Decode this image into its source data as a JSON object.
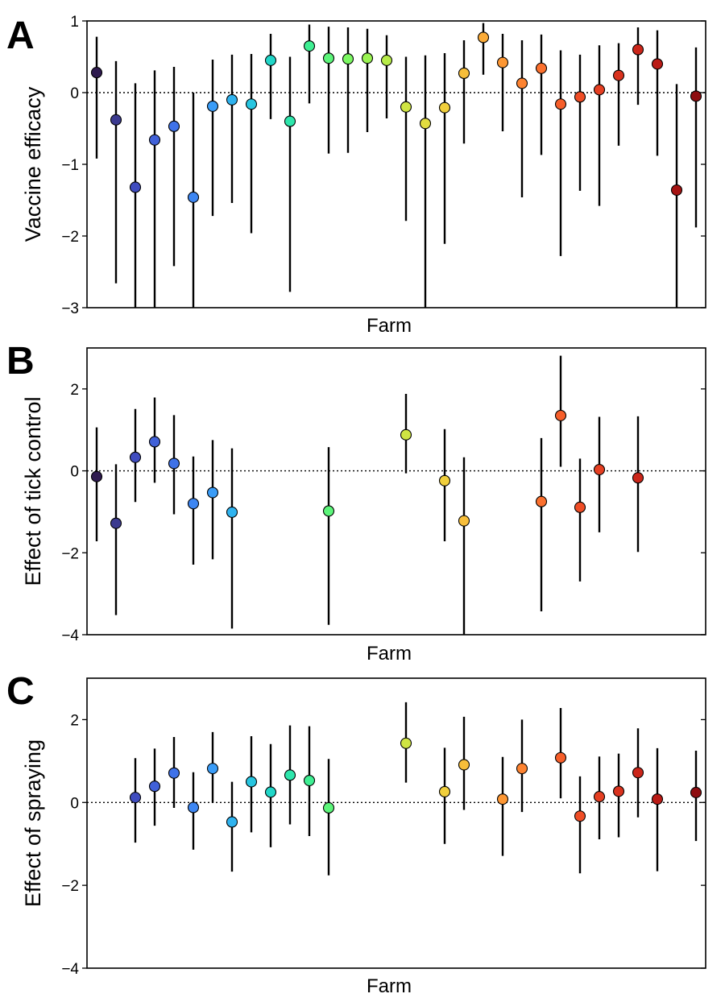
{
  "chart_data": [
    {
      "type": "scatter",
      "panel": "A",
      "title": "",
      "xlabel": "Farm",
      "ylabel": "Vaccine efficacy",
      "ylim": [
        -3,
        1
      ],
      "yticks": [
        -3,
        -2,
        -1,
        0,
        1
      ],
      "ytick_labels": [
        "−3",
        "−2",
        "−1",
        "0",
        "1"
      ],
      "n_farms": 32,
      "reference_line": 0,
      "points": [
        {
          "farm": 1,
          "value": 0.28,
          "lower": -0.92,
          "upper": 0.78
        },
        {
          "farm": 2,
          "value": -0.38,
          "lower": -2.66,
          "upper": 0.44
        },
        {
          "farm": 3,
          "value": -1.32,
          "lower": -3.0,
          "upper": 0.13
        },
        {
          "farm": 4,
          "value": -0.66,
          "lower": -3.0,
          "upper": 0.31
        },
        {
          "farm": 5,
          "value": -0.47,
          "lower": -2.42,
          "upper": 0.36
        },
        {
          "farm": 6,
          "value": -1.46,
          "lower": -3.0,
          "upper": 0.0
        },
        {
          "farm": 7,
          "value": -0.19,
          "lower": -1.72,
          "upper": 0.46
        },
        {
          "farm": 8,
          "value": -0.1,
          "lower": -1.54,
          "upper": 0.53
        },
        {
          "farm": 9,
          "value": -0.16,
          "lower": -1.96,
          "upper": 0.54
        },
        {
          "farm": 10,
          "value": 0.45,
          "lower": -0.37,
          "upper": 0.82
        },
        {
          "farm": 11,
          "value": -0.4,
          "lower": -2.78,
          "upper": 0.5
        },
        {
          "farm": 12,
          "value": 0.65,
          "lower": -0.15,
          "upper": 0.95
        },
        {
          "farm": 13,
          "value": 0.48,
          "lower": -0.85,
          "upper": 0.92
        },
        {
          "farm": 14,
          "value": 0.47,
          "lower": -0.84,
          "upper": 0.91
        },
        {
          "farm": 15,
          "value": 0.48,
          "lower": -0.55,
          "upper": 0.89
        },
        {
          "farm": 16,
          "value": 0.45,
          "lower": -0.36,
          "upper": 0.8
        },
        {
          "farm": 17,
          "value": -0.2,
          "lower": -1.79,
          "upper": 0.5
        },
        {
          "farm": 18,
          "value": -0.43,
          "lower": -3.0,
          "upper": 0.52
        },
        {
          "farm": 19,
          "value": -0.21,
          "lower": -2.11,
          "upper": 0.55
        },
        {
          "farm": 20,
          "value": 0.27,
          "lower": -0.71,
          "upper": 0.73
        },
        {
          "farm": 21,
          "value": 0.77,
          "lower": 0.25,
          "upper": 0.97
        },
        {
          "farm": 22,
          "value": 0.42,
          "lower": -0.54,
          "upper": 0.82
        },
        {
          "farm": 23,
          "value": 0.13,
          "lower": -1.46,
          "upper": 0.73
        },
        {
          "farm": 24,
          "value": 0.34,
          "lower": -0.87,
          "upper": 0.81
        },
        {
          "farm": 25,
          "value": -0.16,
          "lower": -2.28,
          "upper": 0.59
        },
        {
          "farm": 26,
          "value": -0.06,
          "lower": -1.37,
          "upper": 0.53
        },
        {
          "farm": 27,
          "value": 0.04,
          "lower": -1.58,
          "upper": 0.66
        },
        {
          "farm": 28,
          "value": 0.24,
          "lower": -0.74,
          "upper": 0.69
        },
        {
          "farm": 29,
          "value": 0.6,
          "lower": -0.17,
          "upper": 0.91
        },
        {
          "farm": 30,
          "value": 0.4,
          "lower": -0.88,
          "upper": 0.87
        },
        {
          "farm": 31,
          "value": -1.36,
          "lower": -3.0,
          "upper": 0.12
        },
        {
          "farm": 32,
          "value": -0.05,
          "lower": -1.88,
          "upper": 0.63
        }
      ]
    },
    {
      "type": "scatter",
      "panel": "B",
      "title": "",
      "xlabel": "Farm",
      "ylabel": "Effect of tick control",
      "ylim": [
        -4,
        3
      ],
      "yticks": [
        -4,
        -2,
        0,
        2
      ],
      "ytick_labels": [
        "−4",
        "−2",
        "0",
        "2"
      ],
      "n_farms": 32,
      "reference_line": 0,
      "points": [
        {
          "farm": 1,
          "value": -0.14,
          "lower": -1.72,
          "upper": 1.06
        },
        {
          "farm": 2,
          "value": -1.28,
          "lower": -3.52,
          "upper": 0.16
        },
        {
          "farm": 3,
          "value": 0.33,
          "lower": -0.76,
          "upper": 1.51
        },
        {
          "farm": 4,
          "value": 0.71,
          "lower": -0.29,
          "upper": 1.79
        },
        {
          "farm": 5,
          "value": 0.18,
          "lower": -1.06,
          "upper": 1.36
        },
        {
          "farm": 6,
          "value": -0.8,
          "lower": -2.29,
          "upper": 0.35
        },
        {
          "farm": 7,
          "value": -0.53,
          "lower": -2.16,
          "upper": 0.75
        },
        {
          "farm": 8,
          "value": -1.01,
          "lower": -3.85,
          "upper": 0.55
        },
        {
          "farm": 13,
          "value": -0.98,
          "lower": -3.76,
          "upper": 0.58
        },
        {
          "farm": 17,
          "value": 0.88,
          "lower": -0.06,
          "upper": 1.88
        },
        {
          "farm": 19,
          "value": -0.24,
          "lower": -1.72,
          "upper": 1.02
        },
        {
          "farm": 20,
          "value": -1.22,
          "lower": -4.0,
          "upper": 0.33
        },
        {
          "farm": 24,
          "value": -0.75,
          "lower": -3.43,
          "upper": 0.8
        },
        {
          "farm": 25,
          "value": 1.35,
          "lower": 0.1,
          "upper": 2.81
        },
        {
          "farm": 26,
          "value": -0.89,
          "lower": -2.7,
          "upper": 0.3
        },
        {
          "farm": 27,
          "value": 0.03,
          "lower": -1.5,
          "upper": 1.32
        },
        {
          "farm": 29,
          "value": -0.17,
          "lower": -1.98,
          "upper": 1.33
        }
      ]
    },
    {
      "type": "scatter",
      "panel": "C",
      "title": "",
      "xlabel": "Farm",
      "ylabel": "Effect of spraying",
      "ylim": [
        -4,
        3
      ],
      "yticks": [
        -4,
        -2,
        0,
        2
      ],
      "ytick_labels": [
        "−4",
        "−2",
        "0",
        "2"
      ],
      "n_farms": 32,
      "reference_line": 0,
      "points": [
        {
          "farm": 3,
          "value": 0.12,
          "lower": -0.97,
          "upper": 1.07
        },
        {
          "farm": 4,
          "value": 0.39,
          "lower": -0.56,
          "upper": 1.3
        },
        {
          "farm": 5,
          "value": 0.71,
          "lower": -0.13,
          "upper": 1.58
        },
        {
          "farm": 6,
          "value": -0.12,
          "lower": -1.14,
          "upper": 0.73
        },
        {
          "farm": 7,
          "value": 0.82,
          "lower": -0.01,
          "upper": 1.7
        },
        {
          "farm": 8,
          "value": -0.47,
          "lower": -1.67,
          "upper": 0.5
        },
        {
          "farm": 9,
          "value": 0.5,
          "lower": -0.72,
          "upper": 1.6
        },
        {
          "farm": 10,
          "value": 0.25,
          "lower": -1.08,
          "upper": 1.41
        },
        {
          "farm": 11,
          "value": 0.66,
          "lower": -0.53,
          "upper": 1.86
        },
        {
          "farm": 12,
          "value": 0.53,
          "lower": -0.81,
          "upper": 1.84
        },
        {
          "farm": 13,
          "value": -0.13,
          "lower": -1.76,
          "upper": 1.05
        },
        {
          "farm": 17,
          "value": 1.43,
          "lower": 0.48,
          "upper": 2.42
        },
        {
          "farm": 19,
          "value": 0.26,
          "lower": -1.0,
          "upper": 1.32
        },
        {
          "farm": 20,
          "value": 0.91,
          "lower": -0.18,
          "upper": 2.07
        },
        {
          "farm": 22,
          "value": 0.08,
          "lower": -1.29,
          "upper": 1.1
        },
        {
          "farm": 23,
          "value": 0.82,
          "lower": -0.23,
          "upper": 2.0
        },
        {
          "farm": 25,
          "value": 1.08,
          "lower": 0.1,
          "upper": 2.28
        },
        {
          "farm": 26,
          "value": -0.33,
          "lower": -1.71,
          "upper": 0.63
        },
        {
          "farm": 27,
          "value": 0.14,
          "lower": -0.89,
          "upper": 1.11
        },
        {
          "farm": 28,
          "value": 0.27,
          "lower": -0.84,
          "upper": 1.18
        },
        {
          "farm": 29,
          "value": 0.72,
          "lower": -0.36,
          "upper": 1.79
        },
        {
          "farm": 30,
          "value": 0.08,
          "lower": -1.66,
          "upper": 1.31
        },
        {
          "farm": 32,
          "value": 0.24,
          "lower": -0.93,
          "upper": 1.25
        }
      ]
    }
  ],
  "farm_colors": [
    "#2e1a4f",
    "#3b3a8f",
    "#3f4cbf",
    "#4161d8",
    "#3f72e8",
    "#3d86f2",
    "#3a9cf7",
    "#2fb3ef",
    "#27c5e0",
    "#21d6c8",
    "#2ee6ac",
    "#3fef93",
    "#5cf57a",
    "#7cf862",
    "#9af352",
    "#b7ec48",
    "#cfe443",
    "#e2dc3f",
    "#f0cf3c",
    "#f7be3a",
    "#fbab37",
    "#fd9734",
    "#fd8331",
    "#fb702e",
    "#f65e2a",
    "#ef4d26",
    "#e53f22",
    "#d9321e",
    "#cb261a",
    "#ba1b16",
    "#a51312",
    "#8e0d10"
  ]
}
